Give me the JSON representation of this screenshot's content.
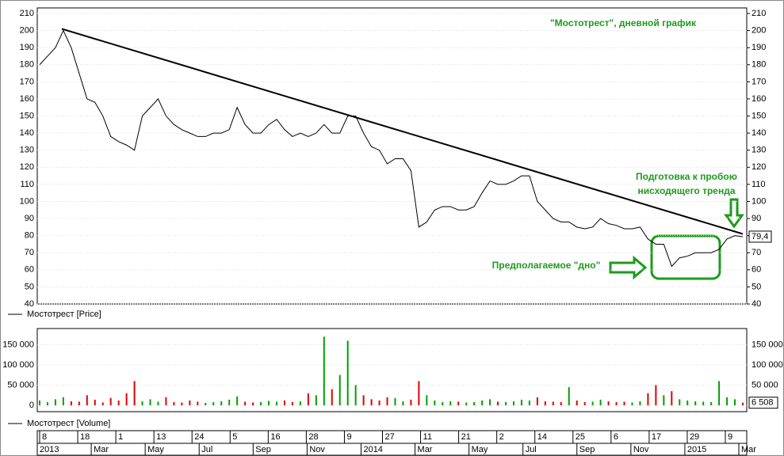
{
  "chart_data": {
    "type": "stock",
    "title": "\"Мостотрест\", дневной график",
    "annotations": [
      "Подготовка к пробою",
      "нисходящего тренда",
      "Предполагаемое \"дно\""
    ],
    "price_legend": "Мостотрест [Price]",
    "volume_legend": "Мостотрест [Volume]",
    "series": [
      {
        "name": "Price",
        "color": "#000000",
        "values": [
          180,
          185,
          190,
          200,
          190,
          175,
          160,
          158,
          150,
          138,
          135,
          133,
          130,
          150,
          155,
          160,
          150,
          145,
          142,
          140,
          138,
          138,
          140,
          140,
          142,
          155,
          145,
          140,
          140,
          145,
          148,
          142,
          138,
          140,
          138,
          140,
          145,
          140,
          140,
          150,
          150,
          140,
          132,
          130,
          122,
          125,
          125,
          118,
          85,
          88,
          95,
          97,
          97,
          95,
          95,
          97,
          105,
          112,
          110,
          110,
          112,
          115,
          115,
          100,
          95,
          90,
          88,
          88,
          85,
          84,
          85,
          90,
          87,
          86,
          84,
          84,
          85,
          78,
          75,
          75,
          62,
          67,
          68,
          70,
          70,
          70,
          72,
          78,
          80,
          79.4
        ]
      },
      {
        "name": "Volume",
        "axis": "y2",
        "up_color": "#00a000",
        "down_color": "#e00000",
        "values": [
          12000,
          8000,
          15000,
          20000,
          10000,
          9000,
          25000,
          14000,
          7000,
          18000,
          12000,
          30000,
          60000,
          10000,
          15000,
          9000,
          20000,
          8000,
          7000,
          12000,
          9000,
          6000,
          8000,
          10000,
          14000,
          22000,
          9000,
          7000,
          8000,
          11000,
          9000,
          12000,
          8000,
          10000,
          30000,
          25000,
          170000,
          40000,
          75000,
          160000,
          50000,
          25000,
          15000,
          12000,
          20000,
          18000,
          10000,
          14000,
          60000,
          25000,
          12000,
          8000,
          10000,
          9000,
          7000,
          8000,
          12000,
          15000,
          9000,
          8000,
          10000,
          14000,
          12000,
          20000,
          10000,
          9000,
          8000,
          45000,
          12000,
          8000,
          9000,
          14000,
          10000,
          8000,
          9000,
          7000,
          10000,
          30000,
          50000,
          25000,
          35000,
          15000,
          12000,
          10000,
          9000,
          8000,
          60000,
          20000,
          15000,
          6508
        ]
      }
    ],
    "last_price": {
      "value": 79.4,
      "label": "79,4"
    },
    "last_volume": {
      "value": 6508,
      "label": "6 508"
    },
    "trendline": [
      201,
      81
    ],
    "ylim": [
      40,
      210
    ],
    "yticks": [
      40,
      50,
      60,
      70,
      80,
      90,
      100,
      110,
      120,
      130,
      140,
      150,
      160,
      170,
      180,
      190,
      200,
      210
    ],
    "y2lim": [
      0,
      190000
    ],
    "y2ticks": [
      0,
      {
        "value": 50000,
        "label": "50 000"
      },
      {
        "value": 100000,
        "label": "100 000"
      },
      {
        "value": 150000,
        "label": "150 000"
      }
    ],
    "x_labels_top": [
      "8",
      "18",
      "1",
      "13",
      "24",
      "5",
      "16",
      "28",
      "9",
      "27",
      "11",
      "21",
      "2",
      "14",
      "25",
      "6",
      "17",
      "29",
      "9"
    ],
    "x_labels_bottom": [
      "2013",
      "Mar",
      "May",
      "Jul",
      "Sep",
      "Nov",
      "2014",
      "Mar",
      "May",
      "Jul",
      "Sep",
      "Nov",
      "2015",
      "Mar"
    ],
    "grid": true
  }
}
